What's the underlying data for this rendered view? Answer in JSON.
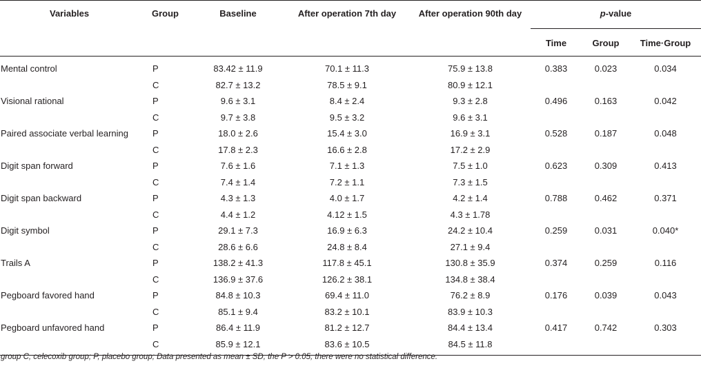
{
  "header": {
    "variables": "Variables",
    "group": "Group",
    "baseline": "Baseline",
    "day7": "After operation 7th day",
    "day90": "After operation 90th day",
    "pvalue_italic": "p",
    "pvalue_rest": "-value",
    "time": "Time",
    "group_p": "Group",
    "time_group": "Time·Group"
  },
  "rows": [
    {
      "variable": "Mental control",
      "p": {
        "group": "P",
        "baseline": "83.42 ± 11.9",
        "d7": "70.1 ± 11.3",
        "d90": "75.9 ± 13.8"
      },
      "c": {
        "group": "C",
        "baseline": "82.7 ± 13.2",
        "d7": "78.5 ± 9.1",
        "d90": "80.9 ± 12.1"
      },
      "time": "0.383",
      "grp": "0.023",
      "tg": "0.034"
    },
    {
      "variable": "Visional rational",
      "p": {
        "group": "P",
        "baseline": "9.6 ± 3.1",
        "d7": "8.4 ± 2.4",
        "d90": "9.3 ± 2.8"
      },
      "c": {
        "group": "C",
        "baseline": "9.7 ± 3.8",
        "d7": "9.5 ± 3.2",
        "d90": "9.6 ± 3.1"
      },
      "time": "0.496",
      "grp": "0.163",
      "tg": "0.042"
    },
    {
      "variable": "Paired associate verbal learning",
      "p": {
        "group": "P",
        "baseline": "18.0 ± 2.6",
        "d7": "15.4 ± 3.0",
        "d90": "16.9 ± 3.1"
      },
      "c": {
        "group": "C",
        "baseline": "17.8 ± 2.3",
        "d7": "16.6 ± 2.8",
        "d90": "17.2 ± 2.9"
      },
      "time": "0.528",
      "grp": "0.187",
      "tg": "0.048"
    },
    {
      "variable": "Digit span forward",
      "p": {
        "group": "P",
        "baseline": "7.6 ± 1.6",
        "d7": "7.1 ± 1.3",
        "d90": "7.5 ± 1.0"
      },
      "c": {
        "group": "C",
        "baseline": "7.4 ± 1.4",
        "d7": "7.2 ± 1.1",
        "d90": "7.3 ± 1.5"
      },
      "time": "0.623",
      "grp": "0.309",
      "tg": "0.413"
    },
    {
      "variable": "Digit span backward",
      "p": {
        "group": "P",
        "baseline": "4.3 ± 1.3",
        "d7": "4.0 ± 1.7",
        "d90": "4.2 ± 1.4"
      },
      "c": {
        "group": "C",
        "baseline": "4.4 ± 1.2",
        "d7": "4.12 ± 1.5",
        "d90": "4.3 ± 1.78"
      },
      "time": "0.788",
      "grp": "0.462",
      "tg": "0.371"
    },
    {
      "variable": "Digit symbol",
      "p": {
        "group": "P",
        "baseline": "29.1 ± 7.3",
        "d7": "16.9 ± 6.3",
        "d90": "24.2 ± 10.4"
      },
      "c": {
        "group": "C",
        "baseline": "28.6 ± 6.6",
        "d7": "24.8 ± 8.4",
        "d90": "27.1 ± 9.4"
      },
      "time": "0.259",
      "grp": "0.031",
      "tg": "0.040*"
    },
    {
      "variable": "Trails A",
      "p": {
        "group": "P",
        "baseline": "138.2 ± 41.3",
        "d7": "117.8 ± 45.1",
        "d90": "130.8 ± 35.9"
      },
      "c": {
        "group": "C",
        "baseline": "136.9 ± 37.6",
        "d7": "126.2 ± 38.1",
        "d90": "134.8 ± 38.4"
      },
      "time": "0.374",
      "grp": "0.259",
      "tg": "0.116"
    },
    {
      "variable": "Pegboard favored hand",
      "p": {
        "group": "P",
        "baseline": "84.8 ± 10.3",
        "d7": "69.4 ± 11.0",
        "d90": "76.2 ± 8.9"
      },
      "c": {
        "group": "C",
        "baseline": "85.1 ± 9.4",
        "d7": "83.2 ± 10.1",
        "d90": "83.9 ± 10.3"
      },
      "time": "0.176",
      "grp": "0.039",
      "tg": "0.043"
    },
    {
      "variable": "Pegboard unfavored hand",
      "p": {
        "group": "P",
        "baseline": "86.4 ± 11.9",
        "d7": "81.2 ± 12.7",
        "d90": "84.4 ± 13.4"
      },
      "c": {
        "group": "C",
        "baseline": "85.9 ± 12.1",
        "d7": "83.6 ± 10.5",
        "d90": "84.5 ± 11.8"
      },
      "time": "0.417",
      "grp": "0.742",
      "tg": "0.303"
    }
  ],
  "footnote": "group C, celecoxib group; P, placebo group; Data presented as mean ± SD, the P > 0.05, there were no statistical difference."
}
